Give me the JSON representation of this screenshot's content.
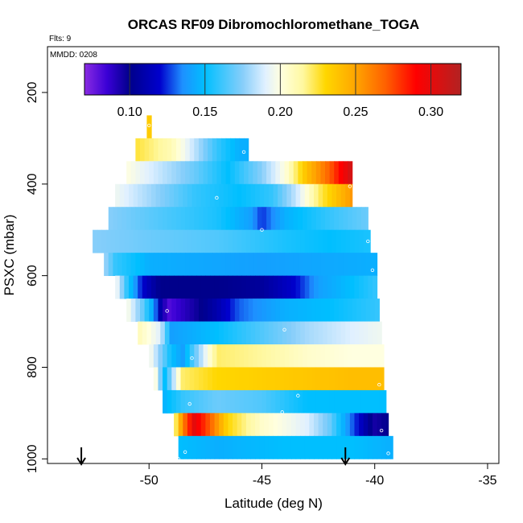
{
  "chart_data": {
    "type": "heatmap",
    "title": "ORCAS RF09 Dibromochloromethane_TOGA",
    "flights_label": "Flts: 9",
    "date_label": "MMDD: 0208",
    "xlabel": "Latitude (deg N)",
    "ylabel": "PSXC (mbar)",
    "xlim": [
      -54.5,
      -34.5
    ],
    "ylim": [
      1010,
      100
    ],
    "x_ticks": [
      -50,
      -45,
      -40,
      -35
    ],
    "x_tick_labels": [
      "-50",
      "-45",
      "-40",
      "-35"
    ],
    "y_ticks": [
      200,
      400,
      600,
      800,
      1000
    ],
    "y_tick_labels": [
      "200",
      "400",
      "600",
      "800",
      "1000"
    ],
    "colorbar": {
      "min": 0.07,
      "max": 0.32,
      "ticks": [
        0.1,
        0.15,
        0.2,
        0.25,
        0.3
      ],
      "tick_labels": [
        "0.10",
        "0.15",
        "0.20",
        "0.25",
        "0.30"
      ],
      "stops": [
        {
          "v": 0.07,
          "c": "#8a2be2"
        },
        {
          "v": 0.085,
          "c": "#3a00d6"
        },
        {
          "v": 0.1,
          "c": "#00008b"
        },
        {
          "v": 0.12,
          "c": "#0000cd"
        },
        {
          "v": 0.135,
          "c": "#1e90ff"
        },
        {
          "v": 0.15,
          "c": "#00bfff"
        },
        {
          "v": 0.175,
          "c": "#87cefa"
        },
        {
          "v": 0.19,
          "c": "#e0f0ff"
        },
        {
          "v": 0.2,
          "c": "#ffffe0"
        },
        {
          "v": 0.215,
          "c": "#fff8a0"
        },
        {
          "v": 0.23,
          "c": "#ffd700"
        },
        {
          "v": 0.25,
          "c": "#ffa500"
        },
        {
          "v": 0.27,
          "c": "#ff6000"
        },
        {
          "v": 0.29,
          "c": "#ff0000"
        },
        {
          "v": 0.32,
          "c": "#b22222"
        }
      ]
    },
    "bands": [
      {
        "p": 275,
        "lat": [
          -50.1,
          -49.9
        ],
        "values": [
          [
            -50.0,
            0.235
          ]
        ]
      },
      {
        "p": 325,
        "lat": [
          -50.6,
          -45.6
        ],
        "values": [
          [
            -50.6,
            0.225
          ],
          [
            -49.0,
            0.21
          ],
          [
            -48.0,
            0.185
          ],
          [
            -47.0,
            0.16
          ],
          [
            -46.0,
            0.145
          ]
        ]
      },
      {
        "p": 375,
        "lat": [
          -51.0,
          -41.0
        ],
        "values": [
          [
            -51.0,
            0.2
          ],
          [
            -49.5,
            0.185
          ],
          [
            -48.0,
            0.17
          ],
          [
            -46.5,
            0.15
          ],
          [
            -45.0,
            0.175
          ],
          [
            -44.0,
            0.2
          ],
          [
            -43.0,
            0.24
          ],
          [
            -42.0,
            0.27
          ],
          [
            -41.0,
            0.31
          ]
        ]
      },
      {
        "p": 425,
        "lat": [
          -51.5,
          -41.0
        ],
        "values": [
          [
            -51.5,
            0.195
          ],
          [
            -50.0,
            0.18
          ],
          [
            -48.0,
            0.16
          ],
          [
            -46.0,
            0.15
          ],
          [
            -44.5,
            0.16
          ],
          [
            -43.5,
            0.185
          ],
          [
            -42.5,
            0.22
          ],
          [
            -41.0,
            0.255
          ]
        ]
      },
      {
        "p": 475,
        "lat": [
          -51.8,
          -40.3
        ],
        "values": [
          [
            -51.8,
            0.175
          ],
          [
            -49.5,
            0.165
          ],
          [
            -47.0,
            0.155
          ],
          [
            -45.5,
            0.14
          ],
          [
            -45.0,
            0.125
          ],
          [
            -44.0,
            0.145
          ],
          [
            -42.0,
            0.16
          ],
          [
            -40.3,
            0.17
          ]
        ]
      },
      {
        "p": 525,
        "lat": [
          -52.5,
          -40.2
        ],
        "values": [
          [
            -52.5,
            0.175
          ],
          [
            -50.0,
            0.17
          ],
          [
            -47.0,
            0.165
          ],
          [
            -44.0,
            0.155
          ],
          [
            -42.0,
            0.15
          ],
          [
            -40.2,
            0.155
          ]
        ]
      },
      {
        "p": 575,
        "lat": [
          -52.0,
          -39.9
        ],
        "values": [
          [
            -52.0,
            0.18
          ],
          [
            -51.5,
            0.16
          ],
          [
            -50.0,
            0.145
          ],
          [
            -45.0,
            0.14
          ],
          [
            -39.9,
            0.145
          ]
        ]
      },
      {
        "p": 625,
        "lat": [
          -51.5,
          -39.9
        ],
        "values": [
          [
            -51.5,
            0.2
          ],
          [
            -51.0,
            0.16
          ],
          [
            -50.3,
            0.12
          ],
          [
            -49.5,
            0.1
          ],
          [
            -47.0,
            0.1
          ],
          [
            -45.0,
            0.105
          ],
          [
            -43.5,
            0.12
          ],
          [
            -42.5,
            0.14
          ],
          [
            -41.0,
            0.15
          ],
          [
            -39.9,
            0.16
          ]
        ]
      },
      {
        "p": 675,
        "lat": [
          -51.0,
          -39.8
        ],
        "values": [
          [
            -51.0,
            0.2
          ],
          [
            -50.3,
            0.17
          ],
          [
            -49.8,
            0.14
          ],
          [
            -49.2,
            0.08
          ],
          [
            -48.0,
            0.095
          ],
          [
            -47.0,
            0.11
          ],
          [
            -46.0,
            0.13
          ],
          [
            -44.0,
            0.145
          ],
          [
            -42.0,
            0.15
          ],
          [
            -39.8,
            0.16
          ]
        ]
      },
      {
        "p": 725,
        "lat": [
          -50.5,
          -39.7
        ],
        "values": [
          [
            -50.5,
            0.21
          ],
          [
            -49.5,
            0.19
          ],
          [
            -49.0,
            0.14
          ],
          [
            -47.0,
            0.15
          ],
          [
            -45.0,
            0.165
          ],
          [
            -43.0,
            0.18
          ],
          [
            -41.0,
            0.19
          ],
          [
            -39.7,
            0.195
          ]
        ]
      },
      {
        "p": 775,
        "lat": [
          -50.0,
          -39.6
        ],
        "values": [
          [
            -50.0,
            0.2
          ],
          [
            -49.0,
            0.15
          ],
          [
            -48.5,
            0.14
          ],
          [
            -47.0,
            0.22
          ],
          [
            -45.0,
            0.215
          ],
          [
            -43.0,
            0.205
          ],
          [
            -41.0,
            0.2
          ],
          [
            -39.6,
            0.2
          ]
        ]
      },
      {
        "p": 825,
        "lat": [
          -49.8,
          -39.6
        ],
        "values": [
          [
            -49.8,
            0.21
          ],
          [
            -49.3,
            0.15
          ],
          [
            -48.5,
            0.22
          ],
          [
            -47.0,
            0.23
          ],
          [
            -44.0,
            0.235
          ],
          [
            -41.0,
            0.24
          ],
          [
            -39.6,
            0.24
          ]
        ]
      },
      {
        "p": 875,
        "lat": [
          -49.4,
          -39.5
        ],
        "values": [
          [
            -49.4,
            0.145
          ],
          [
            -48.5,
            0.16
          ],
          [
            -47.0,
            0.17
          ],
          [
            -45.0,
            0.165
          ],
          [
            -43.0,
            0.15
          ],
          [
            -41.0,
            0.15
          ],
          [
            -39.5,
            0.15
          ]
        ]
      },
      {
        "p": 925,
        "lat": [
          -48.9,
          -39.4
        ],
        "values": [
          [
            -48.9,
            0.21
          ],
          [
            -48.5,
            0.26
          ],
          [
            -48.0,
            0.3
          ],
          [
            -47.3,
            0.27
          ],
          [
            -46.5,
            0.23
          ],
          [
            -45.0,
            0.205
          ],
          [
            -43.0,
            0.19
          ],
          [
            -42.0,
            0.17
          ],
          [
            -41.0,
            0.13
          ],
          [
            -40.0,
            0.095
          ],
          [
            -39.4,
            0.1
          ]
        ]
      },
      {
        "p": 975,
        "lat": [
          -48.7,
          -39.2
        ],
        "values": [
          [
            -48.7,
            0.15
          ],
          [
            -47.0,
            0.145
          ],
          [
            -44.0,
            0.15
          ],
          [
            -41.0,
            0.15
          ],
          [
            -39.2,
            0.145
          ]
        ]
      }
    ],
    "points": [
      [
        -50.0,
        272
      ],
      [
        -45.8,
        330
      ],
      [
        -41.1,
        405
      ],
      [
        -47.0,
        430
      ],
      [
        -45.0,
        500
      ],
      [
        -40.3,
        525
      ],
      [
        -40.1,
        588
      ],
      [
        -49.2,
        677
      ],
      [
        -44.0,
        718
      ],
      [
        -48.1,
        780
      ],
      [
        -43.4,
        862
      ],
      [
        -48.2,
        880
      ],
      [
        -44.1,
        898
      ],
      [
        -39.8,
        838
      ],
      [
        -39.7,
        938
      ],
      [
        -48.4,
        985
      ],
      [
        -48.7,
        1000
      ],
      [
        -39.4,
        988
      ],
      [
        -39.6,
        1005
      ]
    ],
    "arrows": [
      -53.0,
      -41.3
    ]
  }
}
